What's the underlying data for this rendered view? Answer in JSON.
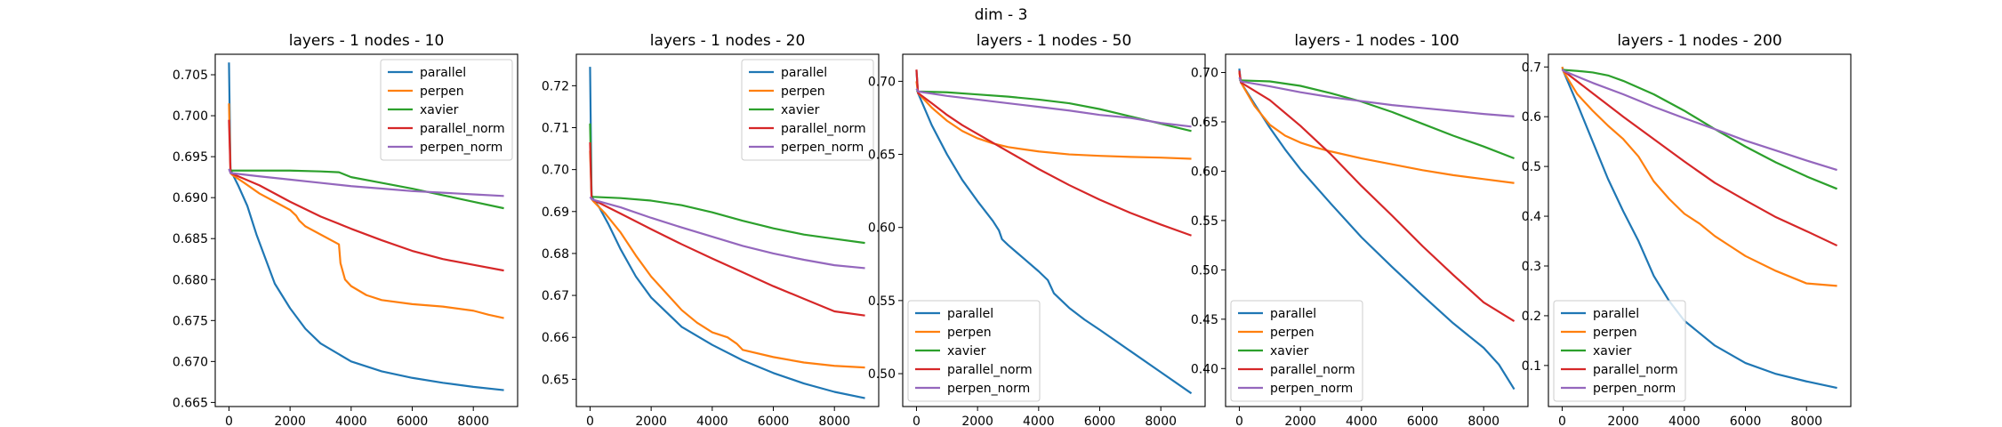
{
  "figure_title": "dim - 3",
  "colors": {
    "parallel": "#1f77b4",
    "perpen": "#ff7f0e",
    "xavier": "#2ca02c",
    "parallel_norm": "#d62728",
    "perpen_norm": "#9467bd"
  },
  "chart_data": [
    {
      "type": "line",
      "title": "layers - 1 nodes - 10",
      "xlim": [
        -450,
        9450
      ],
      "ylim": [
        0.6645,
        0.7075
      ],
      "xticks": [
        0,
        2000,
        4000,
        6000,
        8000
      ],
      "yticks": [
        0.665,
        0.67,
        0.675,
        0.68,
        0.685,
        0.69,
        0.695,
        0.7,
        0.705
      ],
      "ytick_labels": [
        "0.665",
        "0.670",
        "0.675",
        "0.680",
        "0.685",
        "0.690",
        "0.695",
        "0.700",
        "0.705"
      ],
      "legend_position": "upper right",
      "series": [
        {
          "name": "parallel",
          "x": [
            0,
            50,
            100,
            300,
            600,
            900,
            1200,
            1500,
            2000,
            2500,
            3000,
            4000,
            5000,
            6000,
            7000,
            8000,
            9000
          ],
          "y": [
            0.7065,
            0.6935,
            0.693,
            0.6915,
            0.689,
            0.6855,
            0.6825,
            0.6795,
            0.6765,
            0.674,
            0.6722,
            0.67,
            0.6688,
            0.668,
            0.6674,
            0.6669,
            0.6665
          ]
        },
        {
          "name": "perpen",
          "x": [
            0,
            50,
            100,
            500,
            1000,
            1500,
            2000,
            2200,
            2300,
            2500,
            3000,
            3600,
            3650,
            3800,
            4000,
            4500,
            5000,
            6000,
            7000,
            8000,
            8500,
            9000
          ],
          "y": [
            0.7015,
            0.693,
            0.6928,
            0.6918,
            0.6905,
            0.6895,
            0.6885,
            0.6878,
            0.6872,
            0.6865,
            0.6855,
            0.6843,
            0.682,
            0.68,
            0.6792,
            0.6781,
            0.6775,
            0.677,
            0.6767,
            0.6762,
            0.6757,
            0.6753
          ]
        },
        {
          "name": "xavier",
          "x": [
            0,
            50,
            1000,
            2000,
            3000,
            3600,
            4000,
            5000,
            6000,
            7000,
            8000,
            9000
          ],
          "y": [
            0.6935,
            0.6933,
            0.6933,
            0.6933,
            0.6932,
            0.6931,
            0.6925,
            0.6918,
            0.6911,
            0.6903,
            0.6895,
            0.6887
          ]
        },
        {
          "name": "parallel_norm",
          "x": [
            0,
            50,
            1000,
            2000,
            3000,
            4000,
            5000,
            6000,
            7000,
            8000,
            9000
          ],
          "y": [
            0.6995,
            0.693,
            0.6915,
            0.6895,
            0.6877,
            0.6862,
            0.6848,
            0.6835,
            0.6825,
            0.6818,
            0.6811
          ]
        },
        {
          "name": "perpen_norm",
          "x": [
            0,
            50,
            1000,
            2000,
            3000,
            4000,
            5000,
            6000,
            7000,
            8000,
            9000
          ],
          "y": [
            0.6935,
            0.693,
            0.6926,
            0.6922,
            0.6918,
            0.6914,
            0.6911,
            0.6908,
            0.6906,
            0.6904,
            0.6902
          ]
        }
      ]
    },
    {
      "type": "line",
      "title": "layers - 1 nodes - 20",
      "xlim": [
        -450,
        9450
      ],
      "ylim": [
        0.6435,
        0.7275
      ],
      "xticks": [
        0,
        2000,
        4000,
        6000,
        8000
      ],
      "yticks": [
        0.65,
        0.66,
        0.67,
        0.68,
        0.69,
        0.7,
        0.71,
        0.72
      ],
      "ytick_labels": [
        "0.65",
        "0.66",
        "0.67",
        "0.68",
        "0.69",
        "0.70",
        "0.71",
        "0.72"
      ],
      "legend_position": "upper right",
      "series": [
        {
          "name": "parallel",
          "x": [
            0,
            50,
            100,
            300,
            600,
            1000,
            1500,
            2000,
            3000,
            4000,
            5000,
            6000,
            7000,
            8000,
            9000
          ],
          "y": [
            0.7245,
            0.6935,
            0.693,
            0.691,
            0.687,
            0.681,
            0.6745,
            0.6695,
            0.6625,
            0.6582,
            0.6545,
            0.6515,
            0.649,
            0.647,
            0.6455
          ]
        },
        {
          "name": "perpen",
          "x": [
            0,
            50,
            100,
            500,
            1000,
            1500,
            2000,
            2500,
            3000,
            3500,
            4000,
            4500,
            4800,
            5000,
            6000,
            7000,
            8000,
            9000
          ],
          "y": [
            0.7045,
            0.693,
            0.6925,
            0.6895,
            0.685,
            0.6795,
            0.6745,
            0.6705,
            0.6665,
            0.6635,
            0.6612,
            0.66,
            0.6585,
            0.657,
            0.6553,
            0.654,
            0.6532,
            0.6528
          ]
        },
        {
          "name": "xavier",
          "x": [
            0,
            50,
            100,
            1000,
            2000,
            3000,
            4000,
            5000,
            6000,
            7000,
            8000,
            9000
          ],
          "y": [
            0.711,
            0.6937,
            0.6935,
            0.6932,
            0.6926,
            0.6915,
            0.6898,
            0.6878,
            0.686,
            0.6845,
            0.6835,
            0.6825
          ]
        },
        {
          "name": "parallel_norm",
          "x": [
            0,
            50,
            100,
            1000,
            2000,
            3000,
            4000,
            5000,
            6000,
            7000,
            8000,
            9000
          ],
          "y": [
            0.7065,
            0.693,
            0.6928,
            0.6895,
            0.6858,
            0.6822,
            0.6788,
            0.6755,
            0.6722,
            0.6692,
            0.6662,
            0.6652
          ]
        },
        {
          "name": "perpen_norm",
          "x": [
            0,
            50,
            100,
            1000,
            2000,
            3000,
            4000,
            5000,
            6000,
            7000,
            8000,
            9000
          ],
          "y": [
            0.6935,
            0.693,
            0.6928,
            0.691,
            0.6885,
            0.6862,
            0.684,
            0.6818,
            0.68,
            0.6785,
            0.6772,
            0.6765
          ]
        }
      ]
    },
    {
      "type": "line",
      "title": "layers - 1 nodes - 50",
      "xlim": [
        -450,
        9450
      ],
      "ylim": [
        0.4775,
        0.7185
      ],
      "xticks": [
        0,
        2000,
        4000,
        6000,
        8000
      ],
      "yticks": [
        0.5,
        0.55,
        0.6,
        0.65,
        0.7
      ],
      "ytick_labels": [
        "0.50",
        "0.55",
        "0.60",
        "0.65",
        "0.70"
      ],
      "legend_position": "lower left",
      "series": [
        {
          "name": "parallel",
          "x": [
            0,
            50,
            500,
            1000,
            1500,
            2000,
            2500,
            2700,
            2800,
            3000,
            3500,
            4000,
            4300,
            4500,
            5000,
            5500,
            6000,
            7000,
            8000,
            9000
          ],
          "y": [
            0.7075,
            0.692,
            0.67,
            0.65,
            0.6325,
            0.618,
            0.6045,
            0.598,
            0.592,
            0.588,
            0.579,
            0.57,
            0.564,
            0.555,
            0.545,
            0.537,
            0.53,
            0.5155,
            0.501,
            0.4865
          ]
        },
        {
          "name": "perpen",
          "x": [
            0,
            50,
            500,
            1000,
            1500,
            2000,
            2500,
            3000,
            4000,
            5000,
            6000,
            7000,
            8000,
            9000
          ],
          "y": [
            0.7,
            0.692,
            0.682,
            0.673,
            0.666,
            0.661,
            0.6575,
            0.655,
            0.652,
            0.65,
            0.649,
            0.6483,
            0.6478,
            0.647
          ]
        },
        {
          "name": "xavier",
          "x": [
            0,
            50,
            1000,
            2000,
            3000,
            4000,
            5000,
            6000,
            7000,
            8000,
            9000
          ],
          "y": [
            0.6935,
            0.693,
            0.6925,
            0.691,
            0.6895,
            0.6875,
            0.685,
            0.681,
            0.676,
            0.671,
            0.666
          ]
        },
        {
          "name": "parallel_norm",
          "x": [
            0,
            50,
            500,
            1000,
            1500,
            2000,
            2500,
            3000,
            4000,
            5000,
            6000,
            7000,
            8000,
            9000
          ],
          "y": [
            0.708,
            0.692,
            0.685,
            0.677,
            0.67,
            0.664,
            0.658,
            0.652,
            0.64,
            0.629,
            0.619,
            0.61,
            0.602,
            0.5945
          ]
        },
        {
          "name": "perpen_norm",
          "x": [
            0,
            50,
            1000,
            2000,
            3000,
            4000,
            5000,
            6000,
            7000,
            8000,
            9000
          ],
          "y": [
            0.695,
            0.693,
            0.69,
            0.6875,
            0.685,
            0.6825,
            0.68,
            0.677,
            0.675,
            0.6715,
            0.669
          ]
        }
      ]
    },
    {
      "type": "line",
      "title": "layers - 1 nodes - 100",
      "xlim": [
        -450,
        9450
      ],
      "ylim": [
        0.3615,
        0.7185
      ],
      "xticks": [
        0,
        2000,
        4000,
        6000,
        8000
      ],
      "yticks": [
        0.4,
        0.45,
        0.5,
        0.55,
        0.6,
        0.65,
        0.7
      ],
      "ytick_labels": [
        "0.40",
        "0.45",
        "0.50",
        "0.55",
        "0.60",
        "0.65",
        "0.70"
      ],
      "legend_position": "lower left",
      "series": [
        {
          "name": "parallel",
          "x": [
            0,
            50,
            500,
            1000,
            1500,
            2000,
            3000,
            4000,
            5000,
            6000,
            7000,
            8000,
            8500,
            9000
          ],
          "y": [
            0.704,
            0.69,
            0.668,
            0.644,
            0.622,
            0.602,
            0.567,
            0.533,
            0.503,
            0.474,
            0.446,
            0.421,
            0.404,
            0.379
          ]
        },
        {
          "name": "perpen",
          "x": [
            0,
            50,
            500,
            1000,
            1500,
            2000,
            2500,
            3000,
            4000,
            5000,
            6000,
            7000,
            8000,
            9000
          ],
          "y": [
            0.7,
            0.69,
            0.666,
            0.647,
            0.636,
            0.629,
            0.624,
            0.62,
            0.613,
            0.607,
            0.601,
            0.596,
            0.592,
            0.588
          ]
        },
        {
          "name": "xavier",
          "x": [
            0,
            50,
            1000,
            2000,
            3000,
            4000,
            5000,
            6000,
            7000,
            8000,
            9000
          ],
          "y": [
            0.6925,
            0.692,
            0.691,
            0.6865,
            0.679,
            0.6705,
            0.66,
            0.648,
            0.636,
            0.625,
            0.613
          ]
        },
        {
          "name": "parallel_norm",
          "x": [
            0,
            50,
            1000,
            2000,
            3000,
            4000,
            5000,
            6000,
            7000,
            8000,
            9000
          ],
          "y": [
            0.702,
            0.69,
            0.672,
            0.646,
            0.617,
            0.585,
            0.555,
            0.524,
            0.495,
            0.467,
            0.448
          ]
        },
        {
          "name": "perpen_norm",
          "x": [
            0,
            50,
            1000,
            2000,
            3000,
            4000,
            5000,
            6000,
            7000,
            8000,
            9000
          ],
          "y": [
            0.695,
            0.691,
            0.686,
            0.68,
            0.675,
            0.671,
            0.667,
            0.664,
            0.661,
            0.658,
            0.6555
          ]
        }
      ]
    },
    {
      "type": "line",
      "title": "layers - 1 nodes - 200",
      "xlim": [
        -450,
        9450
      ],
      "ylim": [
        0.0175,
        0.7255
      ],
      "xticks": [
        0,
        2000,
        4000,
        6000,
        8000
      ],
      "yticks": [
        0.1,
        0.2,
        0.3,
        0.4,
        0.5,
        0.6,
        0.7
      ],
      "ytick_labels": [
        "0.1",
        "0.2",
        "0.3",
        "0.4",
        "0.5",
        "0.6",
        "0.7"
      ],
      "legend_position": "lower left",
      "series": [
        {
          "name": "parallel",
          "x": [
            0,
            50,
            500,
            1000,
            1500,
            2000,
            2500,
            3000,
            3500,
            4000,
            5000,
            6000,
            7000,
            8000,
            9000
          ],
          "y": [
            0.7,
            0.69,
            0.625,
            0.55,
            0.475,
            0.41,
            0.35,
            0.28,
            0.23,
            0.19,
            0.14,
            0.105,
            0.083,
            0.068,
            0.055
          ]
        },
        {
          "name": "perpen",
          "x": [
            0,
            50,
            500,
            1000,
            1500,
            2000,
            2500,
            3000,
            3500,
            4000,
            4500,
            5000,
            5500,
            6000,
            7000,
            8000,
            9000
          ],
          "y": [
            0.7,
            0.69,
            0.645,
            0.612,
            0.582,
            0.555,
            0.52,
            0.47,
            0.435,
            0.405,
            0.385,
            0.36,
            0.34,
            0.32,
            0.29,
            0.265,
            0.26
          ]
        },
        {
          "name": "xavier",
          "x": [
            0,
            50,
            500,
            1000,
            1500,
            2000,
            3000,
            4000,
            5000,
            6000,
            7000,
            8000,
            9000
          ],
          "y": [
            0.695,
            0.694,
            0.692,
            0.689,
            0.683,
            0.672,
            0.645,
            0.612,
            0.575,
            0.54,
            0.508,
            0.48,
            0.455
          ]
        },
        {
          "name": "parallel_norm",
          "x": [
            0,
            50,
            1000,
            2000,
            3000,
            4000,
            5000,
            6000,
            7000,
            8000,
            9000
          ],
          "y": [
            0.695,
            0.692,
            0.647,
            0.6,
            0.555,
            0.51,
            0.467,
            0.432,
            0.398,
            0.37,
            0.341
          ]
        },
        {
          "name": "perpen_norm",
          "x": [
            0,
            50,
            1000,
            2000,
            3000,
            4000,
            5000,
            6000,
            7000,
            8000,
            9000
          ],
          "y": [
            0.695,
            0.692,
            0.668,
            0.645,
            0.62,
            0.597,
            0.575,
            0.552,
            0.532,
            0.512,
            0.493
          ]
        }
      ]
    }
  ]
}
